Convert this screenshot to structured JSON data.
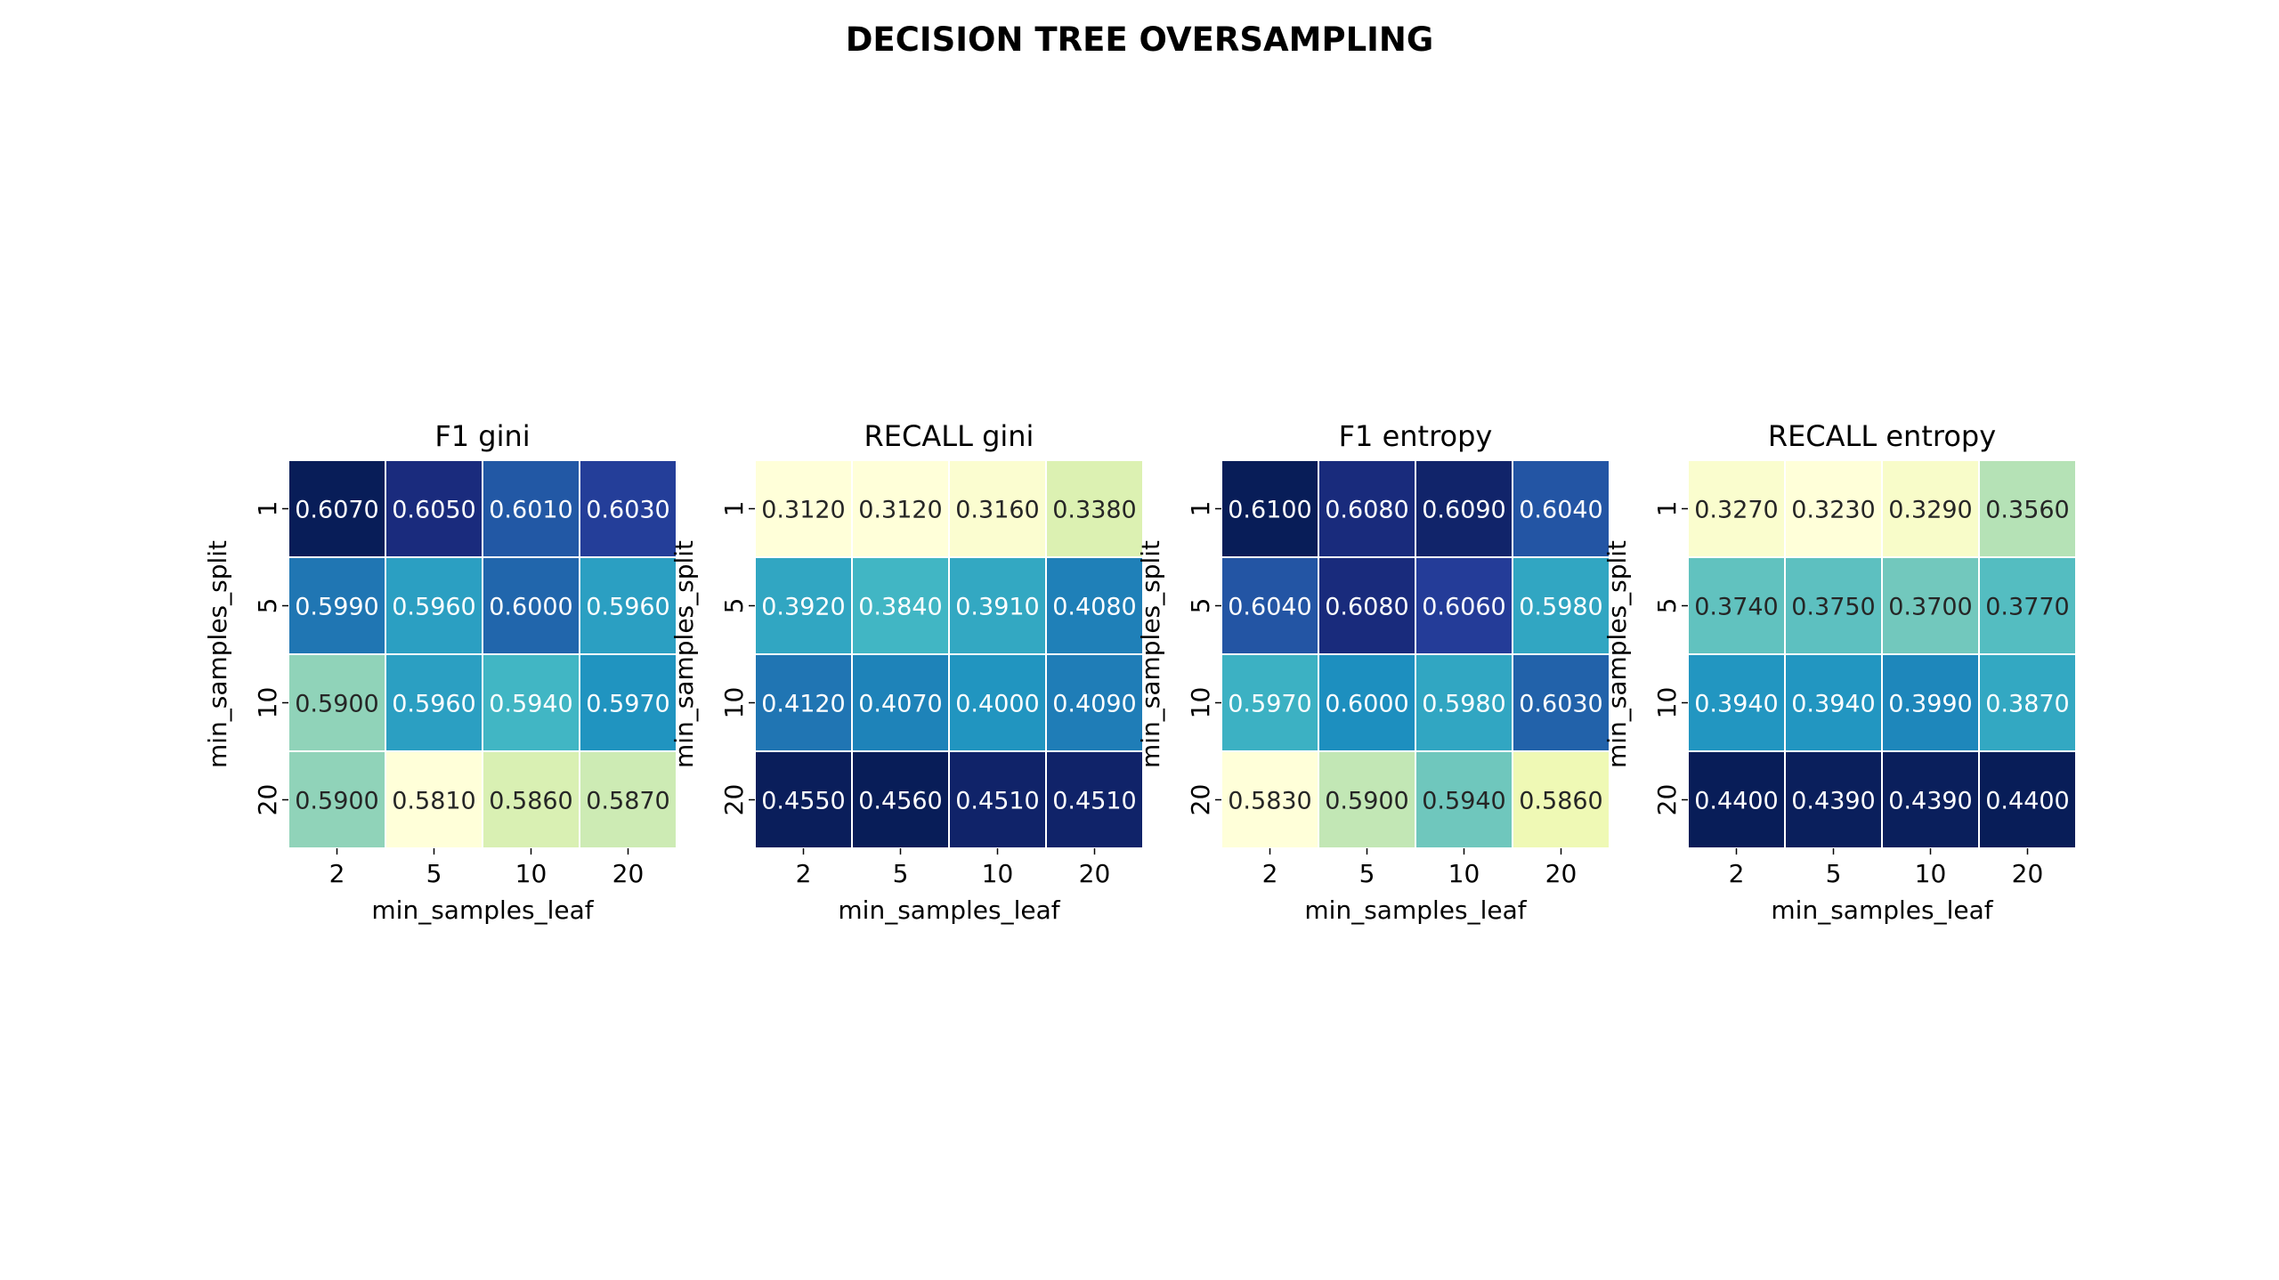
{
  "chart_data": [
    {
      "type": "heatmap",
      "title": "F1 gini",
      "xlabel": "min_samples_leaf",
      "ylabel": "min_samples_split",
      "x_categories": [
        "2",
        "5",
        "10",
        "20"
      ],
      "y_categories": [
        "1",
        "5",
        "10",
        "20"
      ],
      "values": [
        [
          0.607,
          0.605,
          0.601,
          0.603
        ],
        [
          0.599,
          0.596,
          0.6,
          0.596
        ],
        [
          0.59,
          0.596,
          0.594,
          0.597
        ],
        [
          0.59,
          0.581,
          0.586,
          0.587
        ]
      ],
      "labels": [
        [
          "0.6070",
          "0.6050",
          "0.6010",
          "0.6030"
        ],
        [
          "0.5990",
          "0.5960",
          "0.6000",
          "0.5960"
        ],
        [
          "0.5900",
          "0.5960",
          "0.5940",
          "0.5970"
        ],
        [
          "0.5900",
          "0.5810",
          "0.5860",
          "0.5870"
        ]
      ],
      "colormap": "YlGnBu"
    },
    {
      "type": "heatmap",
      "title": "RECALL gini",
      "xlabel": "min_samples_leaf",
      "ylabel": "min_samples_split",
      "x_categories": [
        "2",
        "5",
        "10",
        "20"
      ],
      "y_categories": [
        "1",
        "5",
        "10",
        "20"
      ],
      "values": [
        [
          0.312,
          0.312,
          0.316,
          0.338
        ],
        [
          0.392,
          0.384,
          0.391,
          0.408
        ],
        [
          0.412,
          0.407,
          0.4,
          0.409
        ],
        [
          0.455,
          0.456,
          0.451,
          0.451
        ]
      ],
      "labels": [
        [
          "0.3120",
          "0.3120",
          "0.3160",
          "0.3380"
        ],
        [
          "0.3920",
          "0.3840",
          "0.3910",
          "0.4080"
        ],
        [
          "0.4120",
          "0.4070",
          "0.4000",
          "0.4090"
        ],
        [
          "0.4550",
          "0.4560",
          "0.4510",
          "0.4510"
        ]
      ],
      "colormap": "YlGnBu"
    },
    {
      "type": "heatmap",
      "title": "F1 entropy",
      "xlabel": "min_samples_leaf",
      "ylabel": "min_samples_split",
      "x_categories": [
        "2",
        "5",
        "10",
        "20"
      ],
      "y_categories": [
        "1",
        "5",
        "10",
        "20"
      ],
      "values": [
        [
          0.61,
          0.608,
          0.609,
          0.604
        ],
        [
          0.604,
          0.608,
          0.606,
          0.598
        ],
        [
          0.597,
          0.6,
          0.598,
          0.603
        ],
        [
          0.583,
          0.59,
          0.594,
          0.586
        ]
      ],
      "labels": [
        [
          "0.6100",
          "0.6080",
          "0.6090",
          "0.6040"
        ],
        [
          "0.6040",
          "0.6080",
          "0.6060",
          "0.5980"
        ],
        [
          "0.5970",
          "0.6000",
          "0.5980",
          "0.6030"
        ],
        [
          "0.5830",
          "0.5900",
          "0.5940",
          "0.5860"
        ]
      ],
      "colormap": "YlGnBu"
    },
    {
      "type": "heatmap",
      "title": "RECALL entropy",
      "xlabel": "min_samples_leaf",
      "ylabel": "min_samples_split",
      "x_categories": [
        "2",
        "5",
        "10",
        "20"
      ],
      "y_categories": [
        "1",
        "5",
        "10",
        "20"
      ],
      "values": [
        [
          0.327,
          0.323,
          0.329,
          0.356
        ],
        [
          0.374,
          0.375,
          0.37,
          0.377
        ],
        [
          0.394,
          0.394,
          0.399,
          0.387
        ],
        [
          0.44,
          0.439,
          0.439,
          0.44
        ]
      ],
      "labels": [
        [
          "0.3270",
          "0.3230",
          "0.3290",
          "0.3560"
        ],
        [
          "0.3740",
          "0.3750",
          "0.3700",
          "0.3770"
        ],
        [
          "0.3940",
          "0.3940",
          "0.3990",
          "0.3870"
        ],
        [
          "0.4400",
          "0.4390",
          "0.4390",
          "0.4400"
        ]
      ],
      "colormap": "YlGnBu"
    }
  ],
  "figure": {
    "title": "DECISION TREE OVERSAMPLING"
  }
}
